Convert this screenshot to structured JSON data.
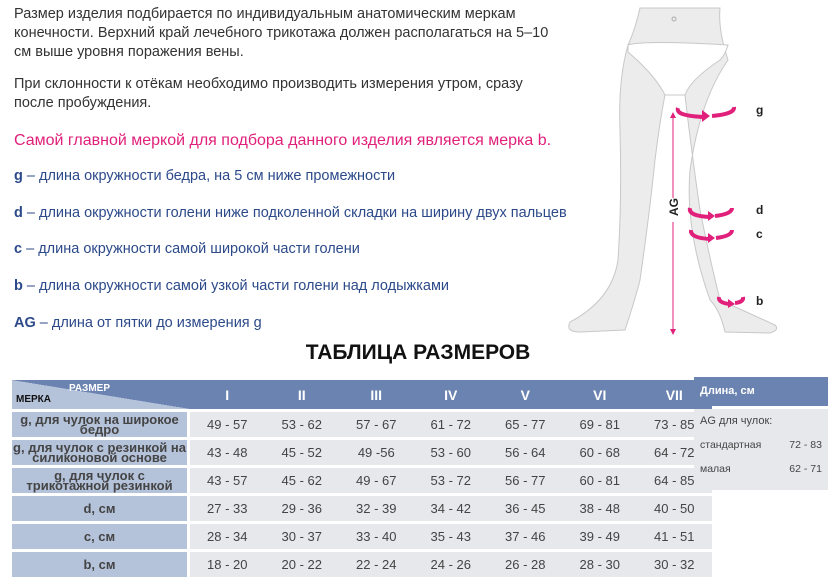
{
  "intro": {
    "p1": [
      "Размер изделия подбирается по индивидуальным анатомическим меркам",
      "конечности. Верхний край лечебного трикотажа должен располагаться на 5–10",
      "см выше уровня поражения вены."
    ],
    "p2": [
      "При склонности к отёкам необходимо производить измерения утром, сразу",
      "после пробуждения."
    ],
    "highlight": "Самой главной меркой для подбора данного изделия является мерка b."
  },
  "definitions": [
    {
      "key": "g",
      "text": " – длина окружности бедра, на 5 см ниже промежности"
    },
    {
      "key": "d",
      "text": " – длина окружности голени ниже подколенной складки на ширину двух пальцев"
    },
    {
      "key": "c",
      "text": " – длина окружности самой широкой части голени"
    },
    {
      "key": "b",
      "text": " – длина окружности самой узкой части голени над лодыжками"
    },
    {
      "key": "AG",
      "text": " – длина от пятки до измерения g"
    }
  ],
  "figure": {
    "labels": {
      "g": "g",
      "d": "d",
      "c": "c",
      "b": "b",
      "ag": "AG"
    },
    "accent": "#e0207a"
  },
  "table": {
    "title": "ТАБЛИЦА РАЗМЕРОВ",
    "corner_size": "РАЗМЕР",
    "corner_measure": "МЕРКА",
    "sizes": [
      "I",
      "II",
      "III",
      "IV",
      "V",
      "VI",
      "VII"
    ],
    "rows": [
      {
        "label": "g, для чулок на широкое бедро",
        "values": [
          "49 - 57",
          "53 - 62",
          "57 - 67",
          "61 - 72",
          "65 - 77",
          "69 - 81",
          "73 - 85"
        ]
      },
      {
        "label": "g, для чулок с  резинкой на силиконовой основе",
        "values": [
          "43 - 48",
          "45 - 52",
          "49 -56",
          "53 - 60",
          "56 - 64",
          "60 - 68",
          "64 - 72"
        ]
      },
      {
        "label": "g, для чулок с трикотажной резинкой",
        "values": [
          "43 - 57",
          "45 - 62",
          "49 - 67",
          "53 - 72",
          "56 - 77",
          "60 - 81",
          "64 - 85"
        ]
      },
      {
        "label": "d, см",
        "values": [
          "27 - 33",
          "29 - 36",
          "32 - 39",
          "34 - 42",
          "36 - 45",
          "38 - 48",
          "40 - 50"
        ]
      },
      {
        "label": "c, см",
        "values": [
          "28 - 34",
          "30 - 37",
          "33 - 40",
          "35 - 43",
          "37 - 46",
          "39 - 49",
          "41 - 51"
        ]
      },
      {
        "label": "b, см",
        "values": [
          "18 - 20",
          "20 - 22",
          "22 - 24",
          "24 - 26",
          "26 - 28",
          "28 - 30",
          "30 - 32"
        ]
      }
    ],
    "header_color": "#6b83b0",
    "label_color": "#b4c2da",
    "cell_color": "#e6e8ec"
  },
  "length": {
    "header": "Длина, см",
    "subtitle": "AG для чулок:",
    "rows": [
      {
        "name": "стандартная",
        "value": "72 - 83"
      },
      {
        "name": "малая",
        "value": "62 - 71"
      }
    ]
  }
}
